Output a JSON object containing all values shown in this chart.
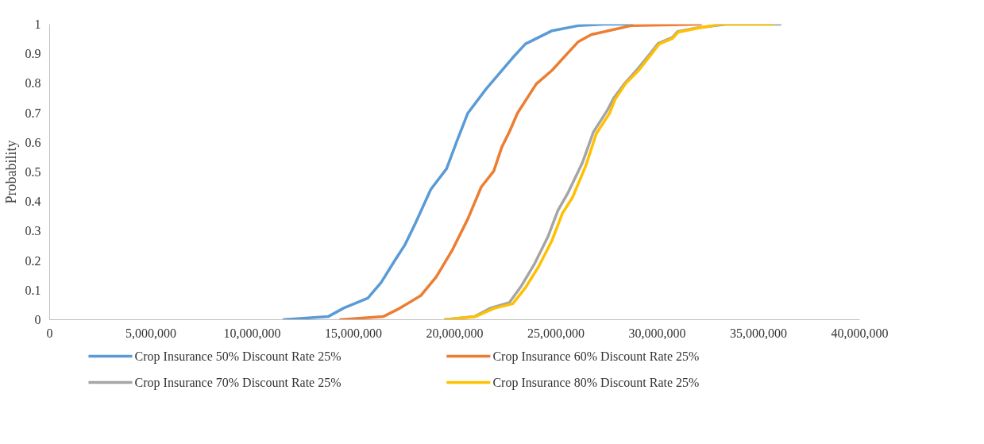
{
  "chart_data": {
    "type": "line",
    "ylabel": "Probability",
    "xlim": [
      0,
      40000000
    ],
    "ylim": [
      0,
      1
    ],
    "xticks": [
      {
        "value": 0,
        "label": "0"
      },
      {
        "value": 5000000,
        "label": "5,000,000"
      },
      {
        "value": 10000000,
        "label": "10,000,000"
      },
      {
        "value": 15000000,
        "label": "15,000,000"
      },
      {
        "value": 20000000,
        "label": "20,000,000"
      },
      {
        "value": 25000000,
        "label": "25,000,000"
      },
      {
        "value": 30000000,
        "label": "30,000,000"
      },
      {
        "value": 35000000,
        "label": "35,000,000"
      },
      {
        "value": 40000000,
        "label": "40,000,000"
      }
    ],
    "yticks": [
      0,
      0.1,
      0.2,
      0.3,
      0.4,
      0.5,
      0.6,
      0.7,
      0.8,
      0.9,
      1
    ],
    "grid": false,
    "legend": "bottom",
    "marker": "none",
    "line_style": "solid",
    "series": [
      {
        "name": "Crop Insurance 50% Discount Rate 25%",
        "color": "#5b9bd5",
        "x": [
          11510000,
          13770000,
          14540000,
          15710000,
          16370000,
          17030000,
          17540000,
          18040000,
          18820000,
          19600000,
          20140000,
          20650000,
          21540000,
          22200000,
          22870000,
          23490000,
          24810000,
          26090000,
          27380000,
          28820000
        ],
        "values": [
          0,
          0.011,
          0.04,
          0.073,
          0.126,
          0.199,
          0.253,
          0.323,
          0.441,
          0.511,
          0.61,
          0.699,
          0.78,
          0.833,
          0.887,
          0.933,
          0.978,
          0.995,
          1,
          1
        ]
      },
      {
        "name": "Crop Insurance 60% Discount Rate 25%",
        "color": "#ed7d31",
        "x": [
          14310000,
          16490000,
          17270000,
          18320000,
          19090000,
          19870000,
          20650000,
          21310000,
          21930000,
          22320000,
          22710000,
          23100000,
          24030000,
          24810000,
          25590000,
          26090000,
          26750000,
          28700000,
          32200000
        ],
        "values": [
          0,
          0.011,
          0.038,
          0.081,
          0.145,
          0.234,
          0.341,
          0.449,
          0.503,
          0.583,
          0.637,
          0.699,
          0.798,
          0.844,
          0.903,
          0.94,
          0.965,
          0.995,
          1
        ]
      },
      {
        "name": "Crop Insurance 70% Discount Rate 25%",
        "color": "#a5a5a5",
        "x": [
          19480000,
          21000000,
          21800000,
          22700000,
          23300000,
          23950000,
          24600000,
          25100000,
          25600000,
          26300000,
          26850000,
          27550000,
          27850000,
          28400000,
          29050000,
          29650000,
          30050000,
          30750000,
          31000000,
          32000000,
          33400000,
          36130000
        ],
        "values": [
          0,
          0.011,
          0.04,
          0.058,
          0.115,
          0.19,
          0.28,
          0.37,
          0.43,
          0.53,
          0.635,
          0.71,
          0.75,
          0.8,
          0.85,
          0.9,
          0.935,
          0.955,
          0.975,
          0.988,
          1,
          1
        ]
      },
      {
        "name": "Crop Insurance 80% Discount Rate 25%",
        "color": "#ffc000",
        "x": [
          19480000,
          21040000,
          21930000,
          22870000,
          23490000,
          24150000,
          24810000,
          25320000,
          25820000,
          26480000,
          26990000,
          27650000,
          27920000,
          28430000,
          29090000,
          29710000,
          30100000,
          30760000,
          31030000,
          32040000,
          33090000,
          35700000
        ],
        "values": [
          0,
          0.011,
          0.038,
          0.054,
          0.108,
          0.18,
          0.269,
          0.36,
          0.414,
          0.522,
          0.629,
          0.699,
          0.745,
          0.798,
          0.844,
          0.898,
          0.933,
          0.952,
          0.973,
          0.987,
          1,
          1
        ]
      }
    ]
  }
}
